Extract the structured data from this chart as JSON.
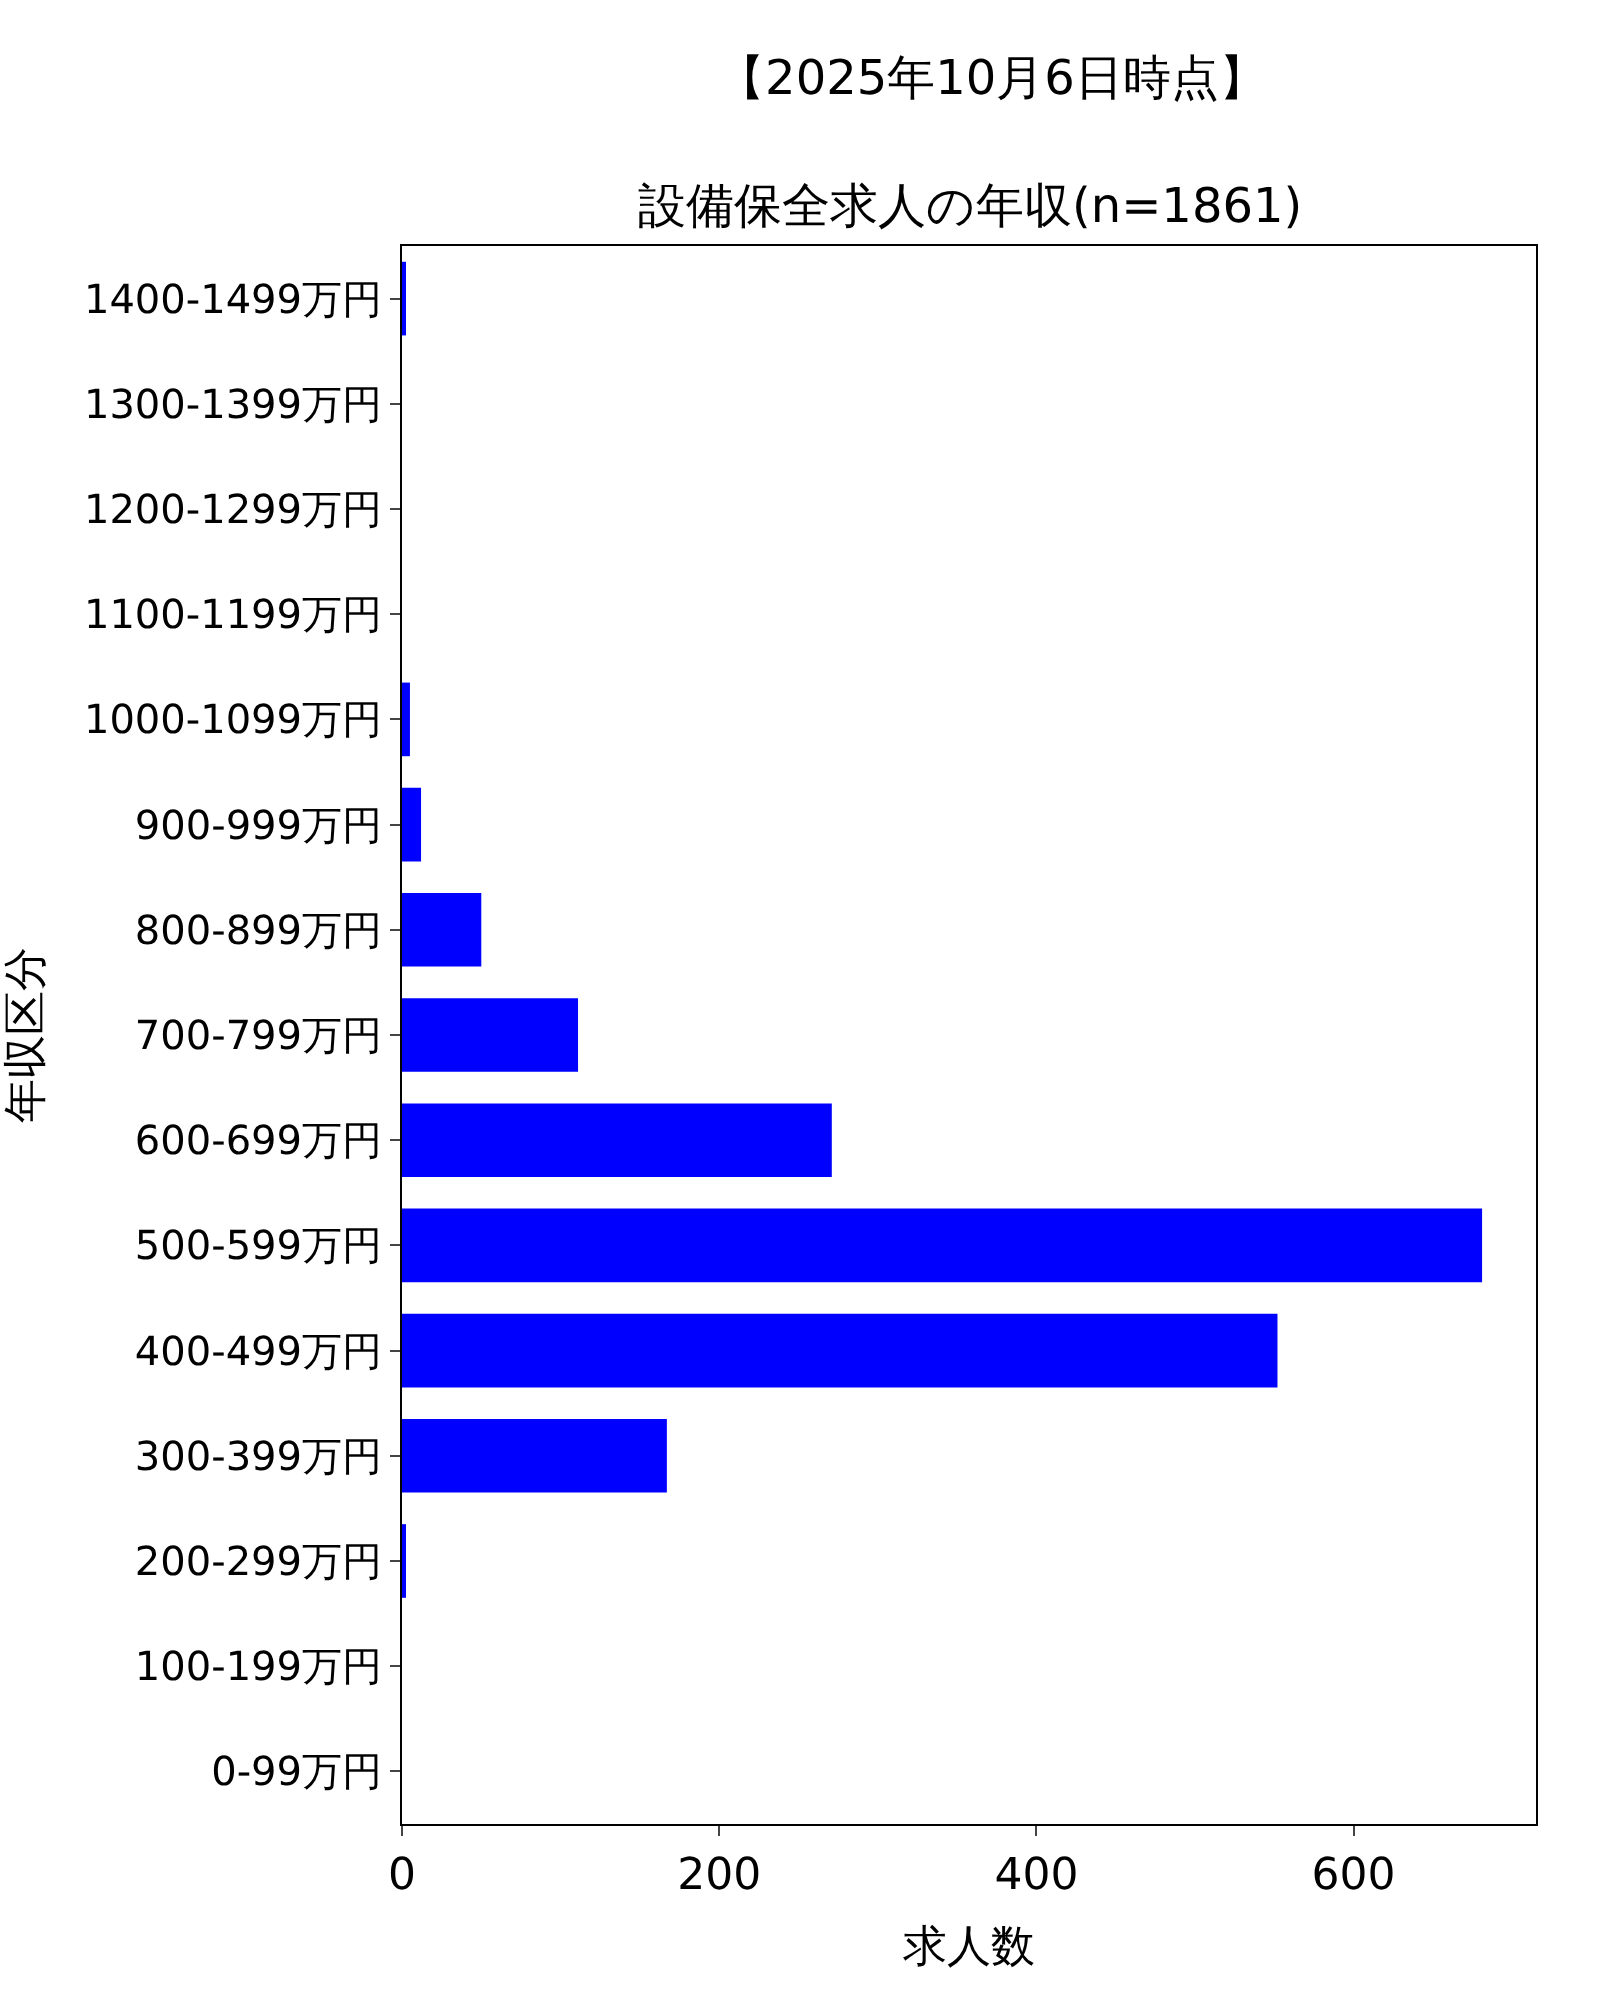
{
  "chart_data": {
    "type": "bar",
    "orientation": "horizontal",
    "title": "【2025年10月6日時点】",
    "subtitle": "設備保全求人の年収(n=1861)",
    "xlabel": "求人数",
    "ylabel": "年収区分",
    "categories": [
      "1400-1499万円",
      "1300-1399万円",
      "1200-1299万円",
      "1100-1199万円",
      "1000-1099万円",
      "900-999万円",
      "800-899万円",
      "700-799万円",
      "600-699万円",
      "500-599万円",
      "400-499万円",
      "300-399万円",
      "200-299万円",
      "100-199万円",
      "0-99万円"
    ],
    "values": [
      2,
      0,
      0,
      0,
      5,
      12,
      50,
      111,
      271,
      681,
      552,
      167,
      2,
      0,
      0
    ],
    "color": "#0000ff",
    "xlim": [
      0,
      715
    ],
    "xticks": [
      0,
      200,
      400,
      600
    ]
  }
}
